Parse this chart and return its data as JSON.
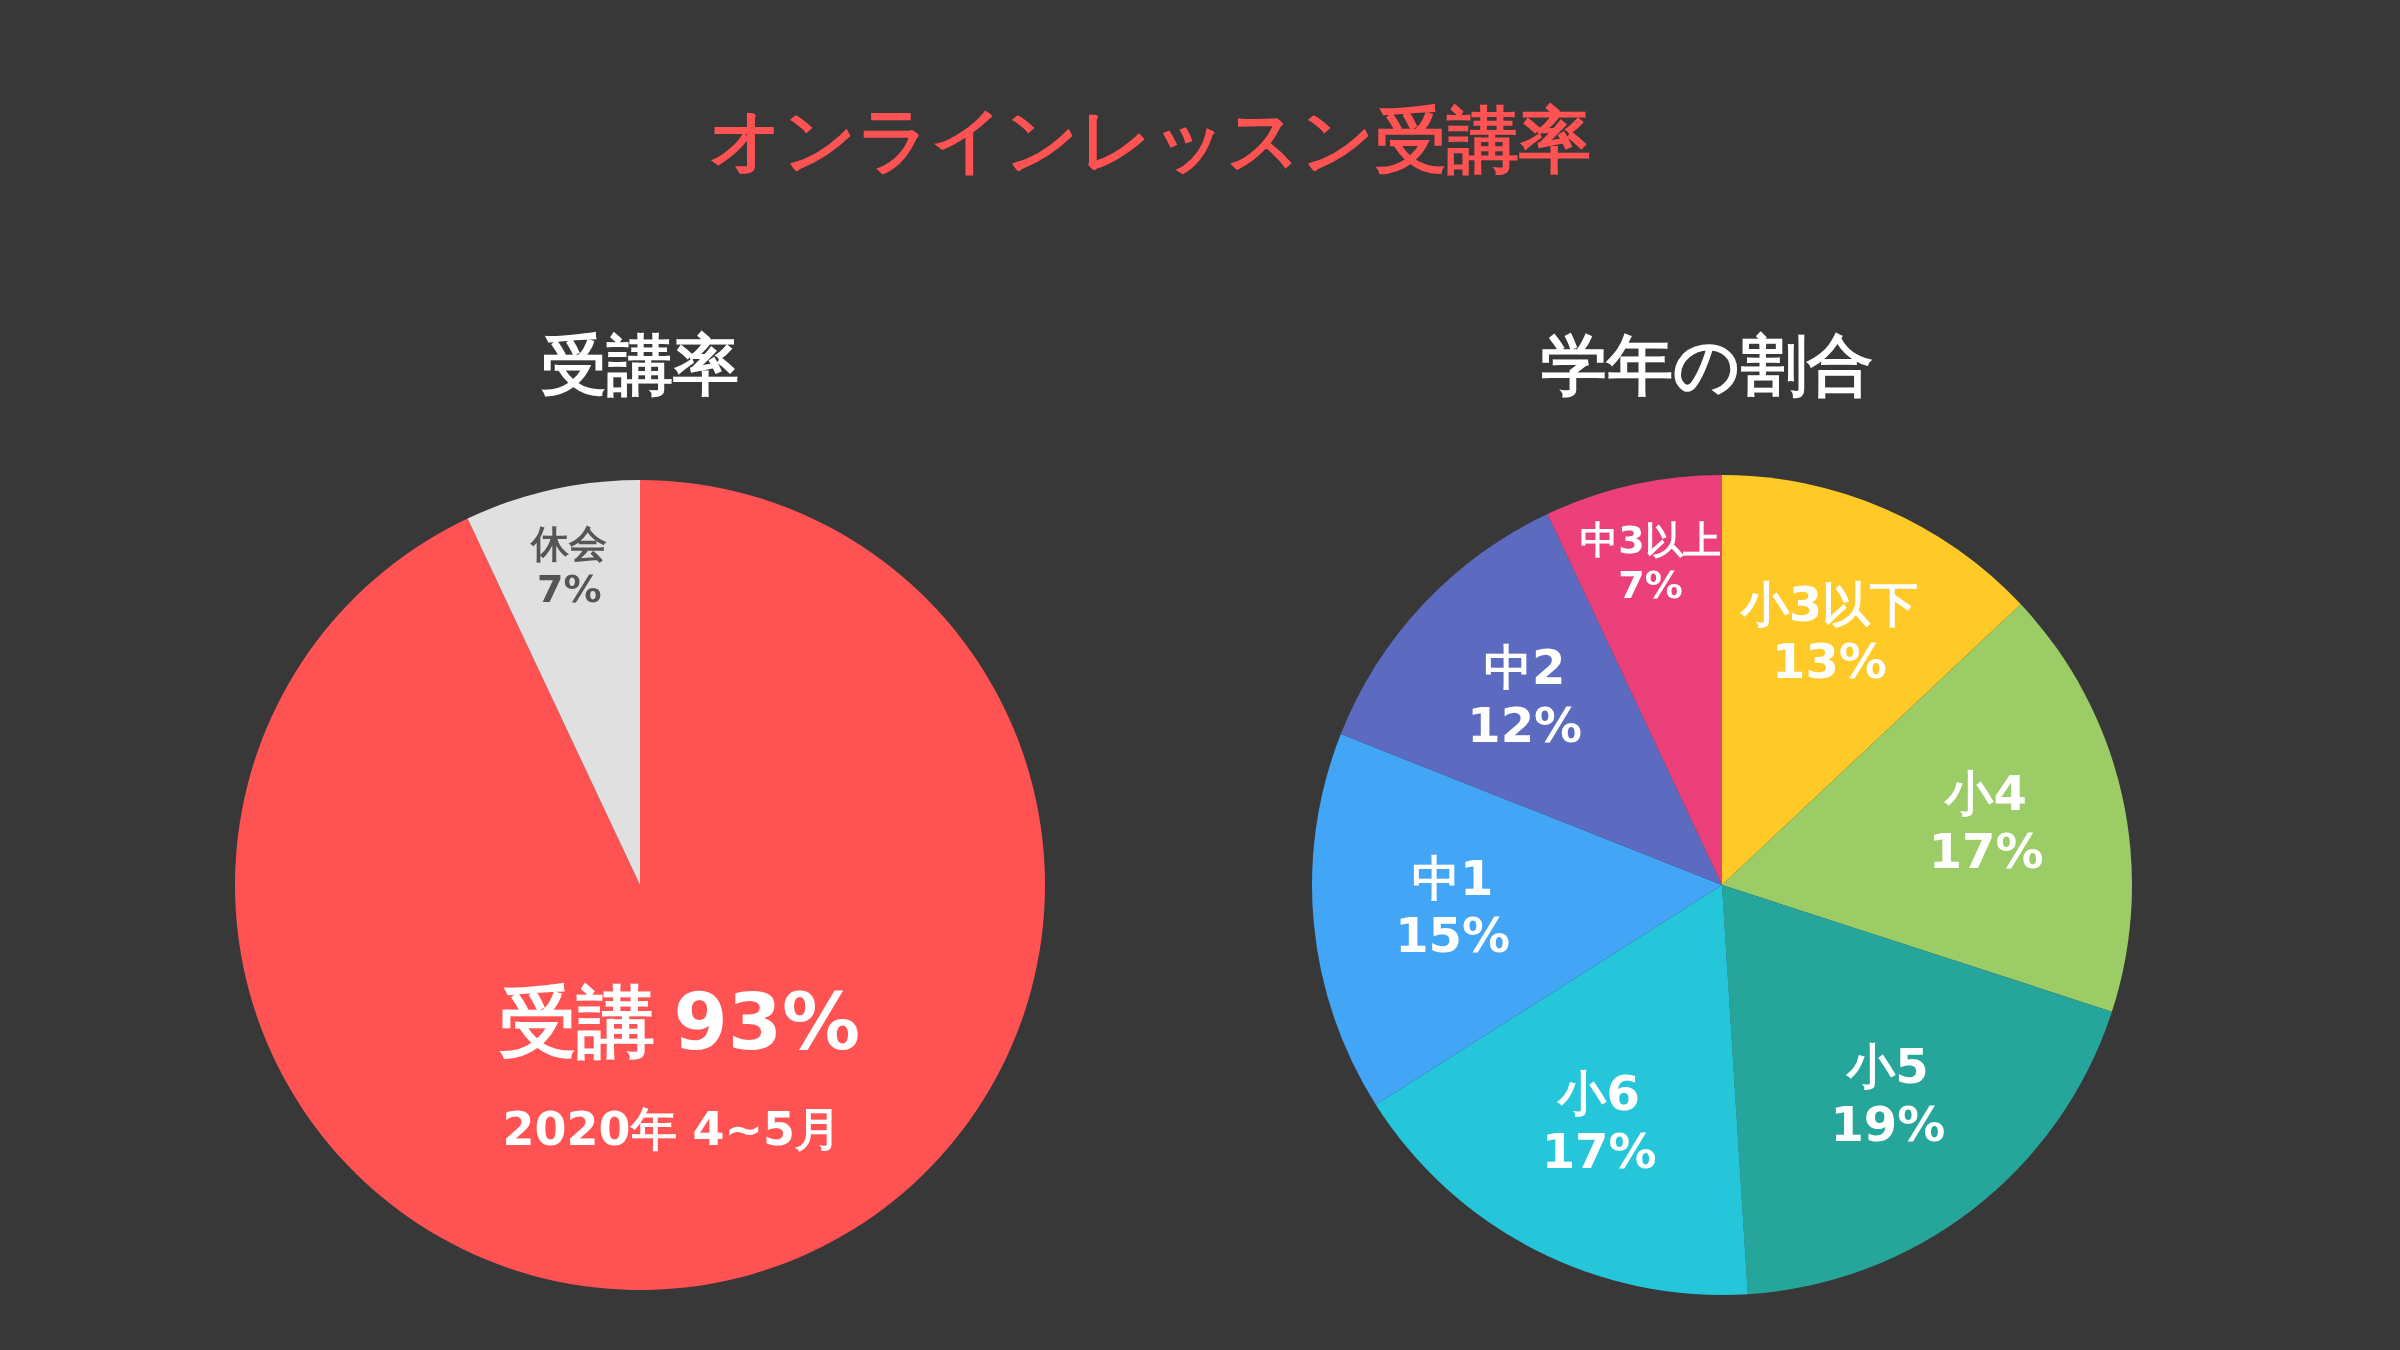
{
  "chart_data": [
    {
      "type": "pie",
      "title": "オンラインレッスン受講率",
      "subtitle": "受講率",
      "categories": [
        "受講",
        "休会"
      ],
      "values": [
        93,
        7
      ],
      "colors": [
        "#ff5252",
        "#e0e0e0"
      ],
      "value_labels": [
        "93%",
        "7%"
      ],
      "annotations": [
        "2020年 4~5月"
      ]
    },
    {
      "type": "pie",
      "title": "学年の割合",
      "categories": [
        "小3以下",
        "小4",
        "小5",
        "小6",
        "中1",
        "中2",
        "中3以上"
      ],
      "values": [
        13,
        17,
        19,
        17,
        15,
        12,
        7
      ],
      "colors": [
        "#ffca28",
        "#9ccc65",
        "#26a69a",
        "#26c6da",
        "#42a5f5",
        "#5c6bc0",
        "#ec407a"
      ],
      "value_labels": [
        "13%",
        "17%",
        "19%",
        "17%",
        "15%",
        "12%",
        "7%"
      ]
    }
  ]
}
